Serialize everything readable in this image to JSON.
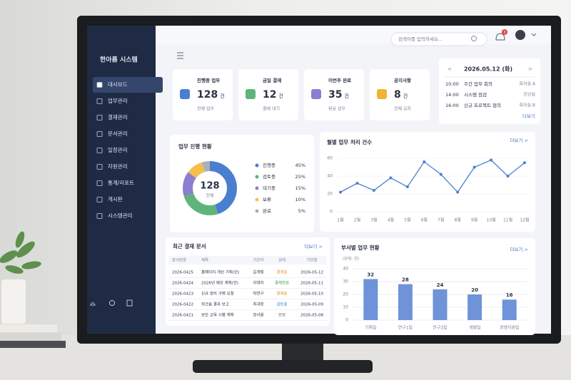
{
  "sidebar": {
    "title": "한아름 시스템",
    "menu": [
      "대시보드",
      "업무관리",
      "결재관리",
      "문서관리",
      "일정관리",
      "자원관리",
      "통계/리포트",
      "게시판",
      "시스템관리"
    ]
  },
  "header": {
    "search_placeholder": "검색어를 입력하세요...",
    "notification_count": 3
  },
  "stat_cards": [
    {
      "label": "진행중 업무",
      "value": 128,
      "unit": "건",
      "sub": "전체 업무",
      "icon_color": "#4a7fd0"
    },
    {
      "label": "금일 결재",
      "value": 12,
      "unit": "건",
      "sub": "결재 대기",
      "icon_color": "#5fb47a"
    },
    {
      "label": "이번주 완료",
      "value": 35,
      "unit": "건",
      "sub": "완료 업무",
      "icon_color": "#8a7fd0"
    },
    {
      "label": "공지사항",
      "value": 8,
      "unit": "건",
      "sub": "전체 공지",
      "icon_color": "#f2b233"
    }
  ],
  "schedule": {
    "prev": "<",
    "next": ">",
    "date": "2026.05.12 (화)",
    "events": [
      {
        "time": "10:00",
        "title": "주간 업무 회의",
        "place": "회의실 A"
      },
      {
        "time": "14:00",
        "title": "시스템 점검",
        "place": "전산실"
      },
      {
        "time": "16:00",
        "title": "신규 프로젝트 협의",
        "place": "회의실 B"
      }
    ],
    "more": "더보기"
  },
  "status_chart": {
    "title": "업무 진행 현황",
    "center_value": 128,
    "center_label": "전체",
    "categories": [
      "진행중",
      "검토중",
      "대기중",
      "보류",
      "완료"
    ],
    "values": [
      45,
      25,
      15,
      10,
      5
    ],
    "value_labels": [
      "45%",
      "25%",
      "15%",
      "10%",
      "5%"
    ],
    "colors": [
      "#4a7fd0",
      "#5fb47a",
      "#8a7fd0",
      "#f5c04a",
      "#aab0bd"
    ]
  },
  "monthly_chart": {
    "title": "월별 업무 처리 건수",
    "more": "더보기 >",
    "categories": [
      "1월",
      "2월",
      "3월",
      "4월",
      "5월",
      "6월",
      "7월",
      "8월",
      "9월",
      "10월",
      "11월",
      "12월"
    ],
    "values": [
      22,
      32,
      24,
      38,
      28,
      56,
      42,
      22,
      50,
      58,
      40,
      55
    ],
    "ylim": [
      0,
      60
    ],
    "yticks": [
      0,
      20,
      40,
      60
    ],
    "color": "#4a7fd0",
    "grid": true
  },
  "recent_docs": {
    "title": "최근 결재 문서",
    "more": "더보기 >",
    "columns": [
      "문서번호",
      "제목",
      "기안자",
      "상태",
      "기안일"
    ],
    "rows": [
      [
        "2026-0425",
        "홈페이지 개선 기획(안)",
        "김개발",
        "결재중",
        "2026-05-12"
      ],
      [
        "2026-0424",
        "2026년 예산 계획(안)",
        "이대리",
        "결재완료",
        "2026-05-11"
      ],
      [
        "2026-0423",
        "신규 장비 구매 요청",
        "박연구",
        "결재중",
        "2026-05-10"
      ],
      [
        "2026-0422",
        "워크숍 결과 보고",
        "최과장",
        "검토중",
        "2026-05-09"
      ],
      [
        "2026-0421",
        "보안 교육 시행 계획",
        "정사원",
        "완료",
        "2026-05-08"
      ]
    ],
    "status_colors": [
      "#e8932b",
      "#3aa35b",
      "#e8932b",
      "#3f7fd6",
      "#666c7a"
    ]
  },
  "dept_chart": {
    "title": "부서별 업무 현황",
    "more": "더보기 >",
    "unit_label": "(단위: 건)",
    "categories": [
      "기획팀",
      "연구1팀",
      "연구2팀",
      "개발팀",
      "경영지원팀"
    ],
    "values": [
      32,
      28,
      24,
      20,
      16
    ],
    "ylim": [
      0,
      40
    ],
    "yticks": [
      0,
      10,
      20,
      30,
      40
    ],
    "color": "#6f93d8",
    "grid": true
  }
}
